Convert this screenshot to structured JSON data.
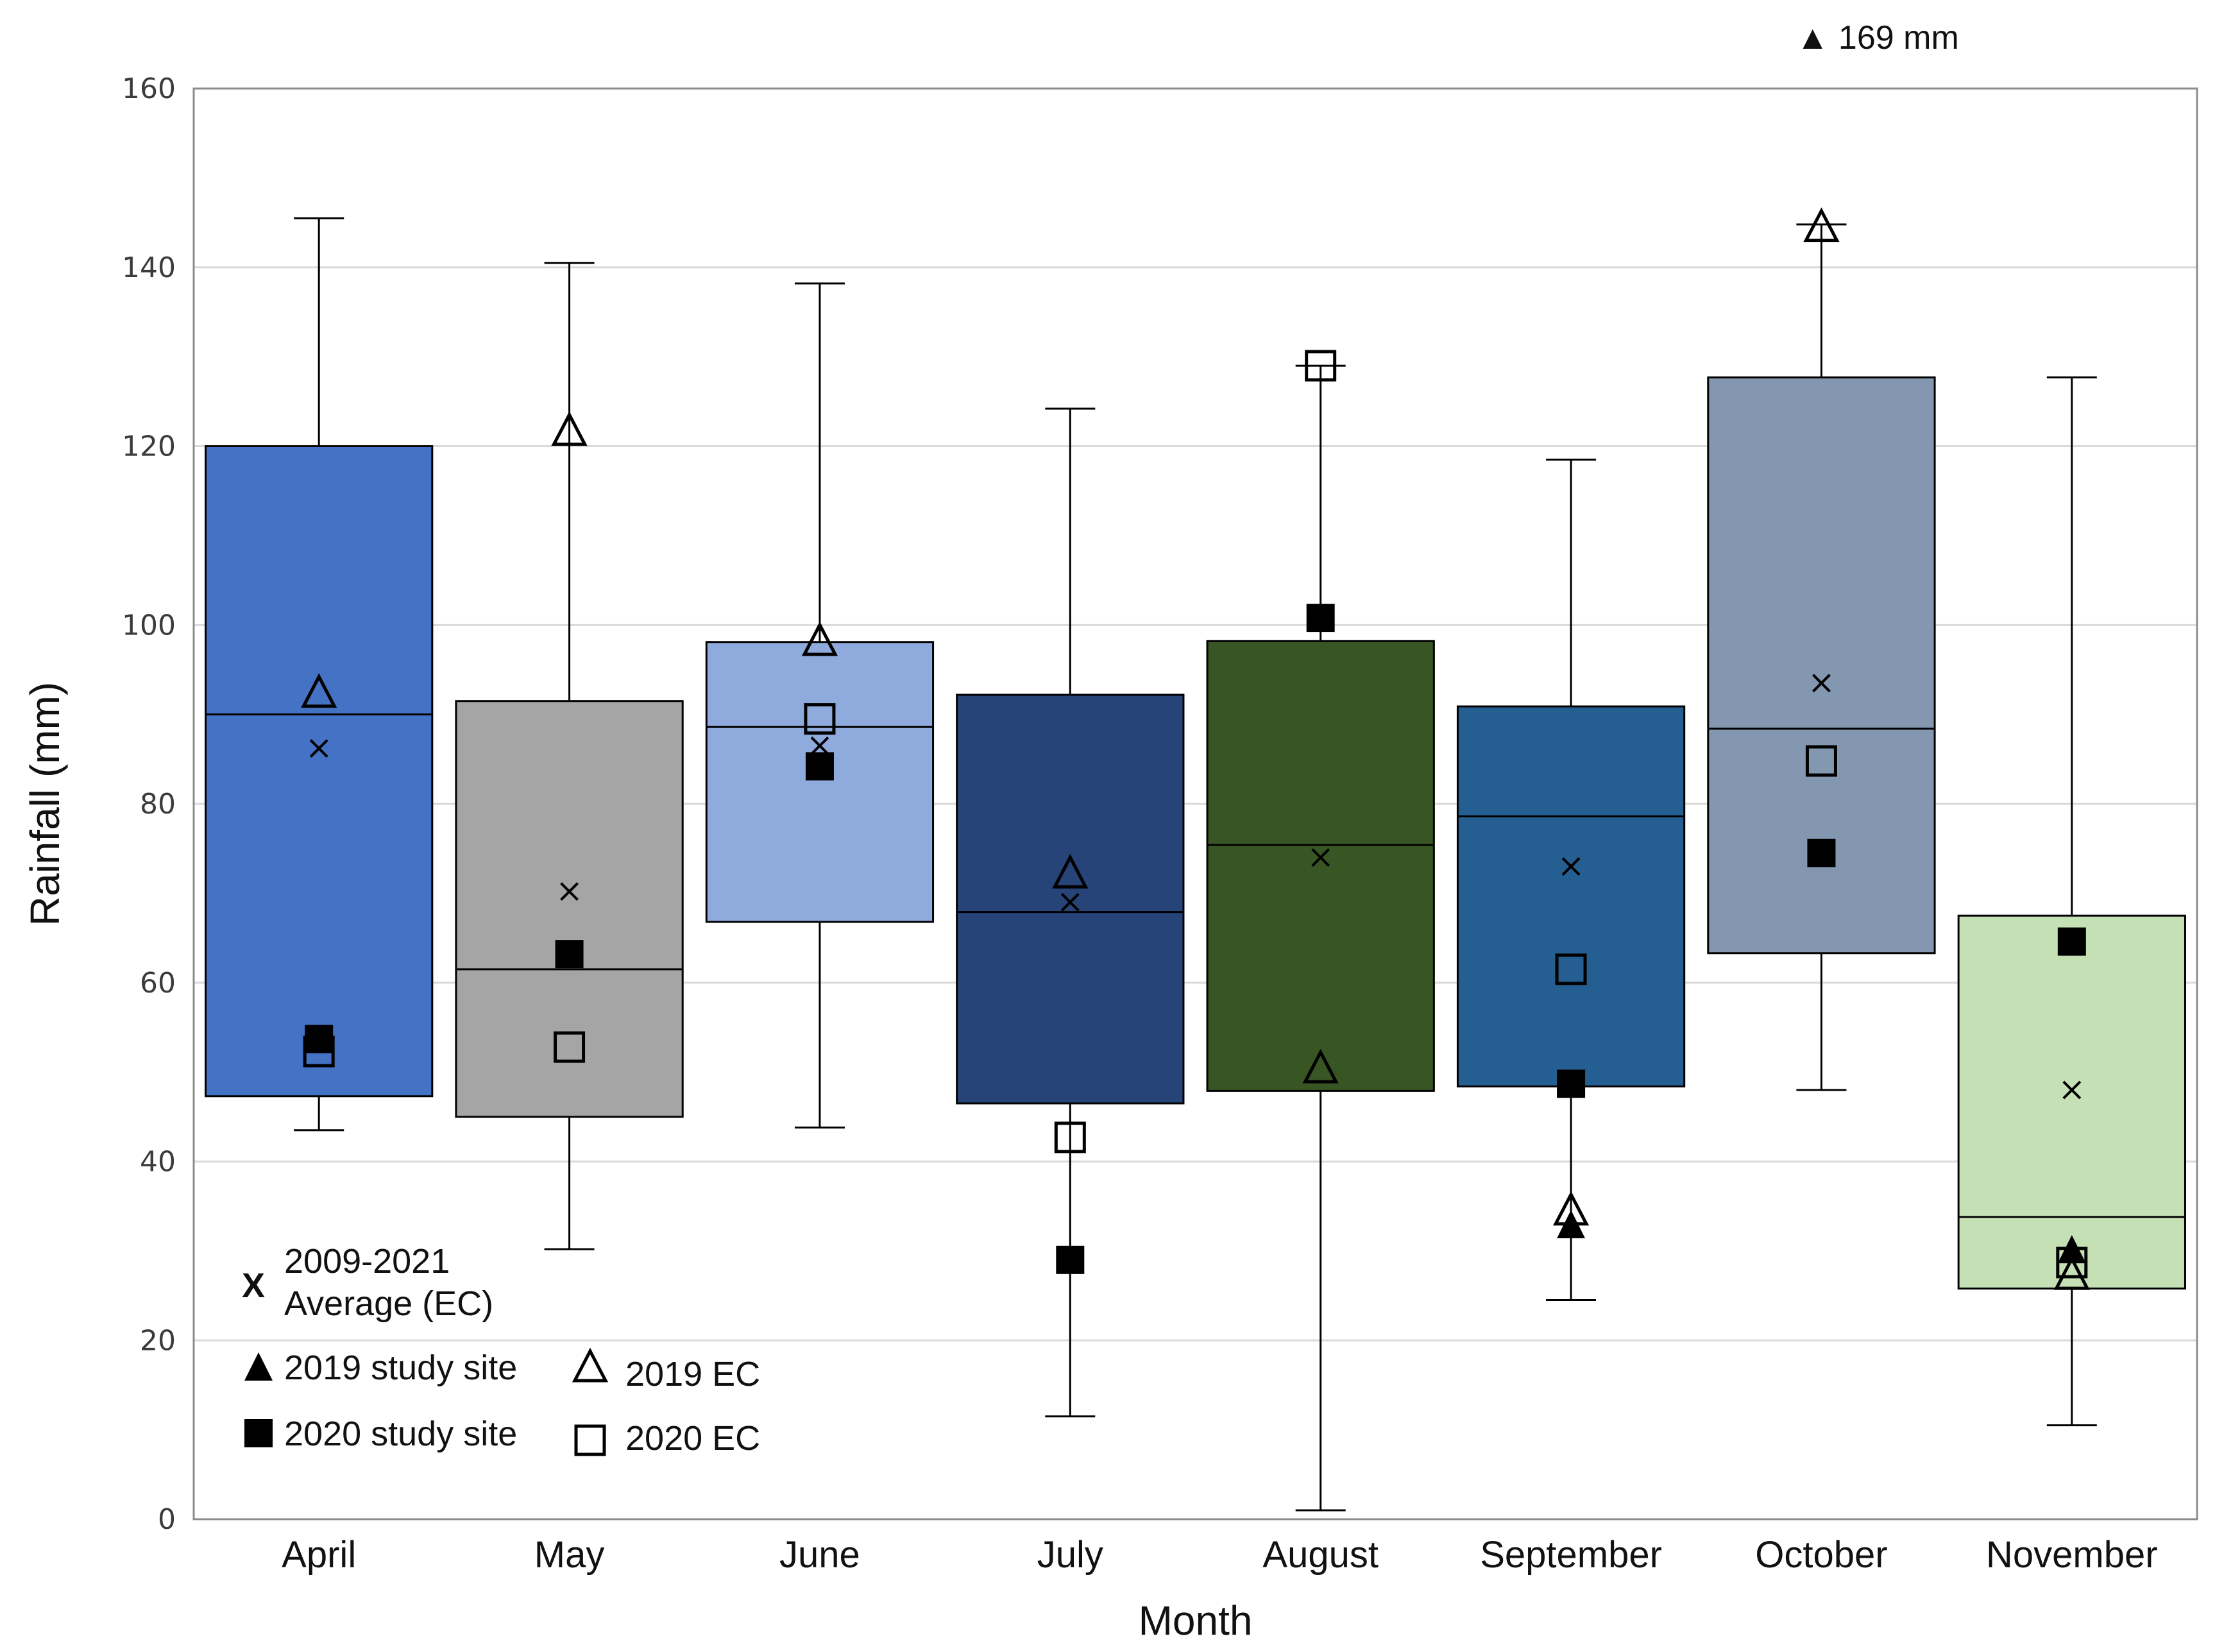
{
  "chart_data": {
    "type": "box",
    "title": "",
    "xlabel": "Month",
    "ylabel": "Rainfall (mm)",
    "ylim": [
      0,
      160
    ],
    "yticks": [
      0,
      20,
      40,
      60,
      80,
      100,
      120,
      140,
      160
    ],
    "grid": "horizontal",
    "legend_position": "bottom-left",
    "categories": [
      "April",
      "May",
      "June",
      "July",
      "August",
      "September",
      "October",
      "November"
    ],
    "boxes": [
      {
        "month": "April",
        "min": 43.5,
        "q1": 47.3,
        "median": 90.0,
        "q3": 120.0,
        "max": 145.5,
        "mean": 86.2,
        "fill": "#4472C4"
      },
      {
        "month": "May",
        "min": 30.2,
        "q1": 45.0,
        "median": 61.5,
        "q3": 91.5,
        "max": 140.5,
        "mean": 70.2,
        "fill": "#A5A5A5"
      },
      {
        "month": "June",
        "min": 43.8,
        "q1": 66.8,
        "median": 88.6,
        "q3": 98.1,
        "max": 138.2,
        "mean": 86.5,
        "fill": "#8FAADC"
      },
      {
        "month": "July",
        "min": 11.5,
        "q1": 46.5,
        "median": 67.9,
        "q3": 92.2,
        "max": 124.2,
        "mean": 69.0,
        "fill": "#264478"
      },
      {
        "month": "August",
        "min": 1.0,
        "q1": 47.9,
        "median": 75.4,
        "q3": 98.2,
        "max": 129.0,
        "mean": 74.0,
        "fill": "#375623"
      },
      {
        "month": "September",
        "min": 24.5,
        "q1": 48.4,
        "median": 78.6,
        "q3": 90.9,
        "max": 118.5,
        "mean": 73.0,
        "fill": "#255E91"
      },
      {
        "month": "October",
        "min": 48.0,
        "q1": 63.3,
        "median": 88.4,
        "q3": 127.7,
        "max": 144.8,
        "mean": 93.5,
        "fill": "#8497B0"
      },
      {
        "month": "November",
        "min": 10.5,
        "q1": 25.8,
        "median": 33.8,
        "q3": 67.5,
        "max": 127.7,
        "mean": 48.0,
        "fill": "#C5E0B4"
      }
    ],
    "series": [
      {
        "name": "2019 study site",
        "marker": "filled-triangle",
        "values": [
          null,
          null,
          null,
          null,
          null,
          33.0,
          169,
          30.2
        ]
      },
      {
        "name": "2020 study site",
        "marker": "filled-square",
        "values": [
          53.7,
          63.2,
          84.2,
          29.0,
          100.8,
          48.7,
          74.5,
          64.6
        ]
      },
      {
        "name": "2019 EC",
        "marker": "open-triangle",
        "values": [
          92.5,
          121.8,
          98.3,
          72.3,
          50.5,
          34.6,
          144.6,
          27.4
        ]
      },
      {
        "name": "2020 EC",
        "marker": "open-square",
        "values": [
          52.3,
          52.8,
          89.5,
          42.7,
          129.0,
          61.5,
          84.8,
          28.7
        ]
      }
    ],
    "mean_series_name": "2009-2021 Average (EC)",
    "out_of_range_note": {
      "symbol": "▲",
      "text": "169 mm"
    },
    "legend": [
      {
        "marker": "x",
        "lines": [
          "2009-2021",
          "Average (EC)"
        ]
      },
      {
        "marker": "filled-triangle",
        "lines": [
          "2019 study site"
        ]
      },
      {
        "marker": "open-triangle",
        "lines": [
          "2019 EC"
        ]
      },
      {
        "marker": "filled-square",
        "lines": [
          "2020 study site"
        ]
      },
      {
        "marker": "open-square",
        "lines": [
          "2020 EC"
        ]
      }
    ]
  }
}
